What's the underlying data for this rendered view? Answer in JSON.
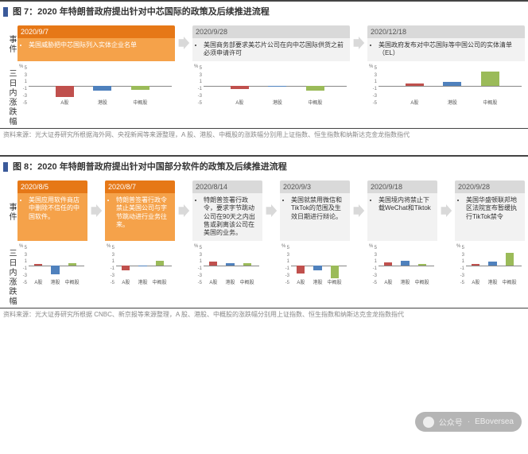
{
  "figures": [
    {
      "title": "图 7：2020 年特朗普政府提出针对中芯国际的政策及后续推进流程",
      "event_label": "事件",
      "chart_label": "三日内涨跌幅",
      "events": [
        {
          "date": "2020/9/7",
          "highlight": true,
          "text": "美国威胁把中芯国际列入实体企业名单"
        },
        {
          "date": "2020/9/28",
          "highlight": false,
          "text": "美国商务部要求美芯片公司在向中芯国际供货之前必须申请许可"
        },
        {
          "date": "2020/12/18",
          "highlight": false,
          "text": "美国政府发布对中芯国际等中国公司的实体清单（EL）"
        }
      ],
      "charts": {
        "categories": [
          "A股",
          "港股",
          "中概股"
        ],
        "ylim": [
          -5,
          5
        ],
        "yticks": [
          5,
          3,
          1,
          -1,
          -3,
          -5
        ],
        "y_unit": "%",
        "colors": [
          "#c0504d",
          "#4f81bd",
          "#9bbb59"
        ],
        "series": [
          [
            -2.8,
            -1.2,
            -1.0
          ],
          [
            -0.8,
            -0.3,
            -1.2
          ],
          [
            0.6,
            1.0,
            3.5
          ]
        ]
      },
      "source": "资料来源：光大证券研究所根据海外网、央视新闻等来源整理，A 股、港股、中概股的涨跌幅分别用上证指数、恒生指数和纳斯达克金龙指数指代"
    },
    {
      "title": "图 8：2020 年特朗普政府提出针对中国部分软件的政策及后续推进流程",
      "event_label": "事件",
      "chart_label": "三日内涨跌幅",
      "events": [
        {
          "date": "2020/8/5",
          "highlight": true,
          "text": "美国应用软件商店中删除不信任的中国软件。"
        },
        {
          "date": "2020/8/7",
          "highlight": true,
          "text": "特朗普签署行政令禁止美国公司与字节跳动进行业务往来。"
        },
        {
          "date": "2020/8/14",
          "highlight": false,
          "text": "特朗普签署行政令，要求字节跳动公司在90天之内出售或剥离该公司在美国的业务。"
        },
        {
          "date": "2020/9/3",
          "highlight": false,
          "text": "美国就禁用微信和TikTok的范围及生效日期进行辩论。"
        },
        {
          "date": "2020/9/18",
          "highlight": false,
          "text": "美国境内将禁止下载WeChat和Tiktok"
        },
        {
          "date": "2020/9/28",
          "highlight": false,
          "text": "美国华盛顿联邦地区法院宣布暂缓执行TikTok禁令"
        }
      ],
      "charts": {
        "categories": [
          "A股",
          "港股",
          "中概股"
        ],
        "ylim": [
          -5,
          5
        ],
        "yticks": [
          5,
          3,
          1,
          -1,
          -3,
          -5
        ],
        "y_unit": "%",
        "colors": [
          "#c0504d",
          "#4f81bd",
          "#9bbb59"
        ],
        "series": [
          [
            0.3,
            -2.2,
            0.5
          ],
          [
            -1.2,
            -0.3,
            1.2
          ],
          [
            1.0,
            0.5,
            0.5
          ],
          [
            -2.0,
            -1.3,
            -3.2
          ],
          [
            0.8,
            1.2,
            0.3
          ],
          [
            0.4,
            1.0,
            3.2
          ]
        ]
      },
      "source": "资料来源：光大证券研究所根据 CNBC、新京报等来源整理，A 股、港股、中概股的涨跌幅分别用上证指数、恒生指数和纳斯达克金龙指数指代"
    }
  ],
  "watermark": {
    "label": "公众号",
    "name": "EBoversea"
  }
}
